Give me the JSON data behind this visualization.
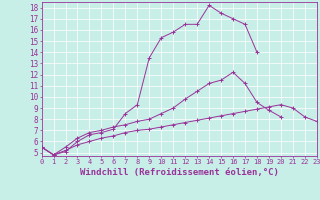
{
  "background_color": "#c8eee8",
  "line_color": "#993399",
  "xlabel": "Windchill (Refroidissement éolien,°C)",
  "xlabel_fontsize": 6.5,
  "ytick_fontsize": 5.5,
  "xtick_fontsize": 5.0,
  "ylim_min": 4.7,
  "ylim_max": 18.5,
  "xlim_min": 0,
  "xlim_max": 23,
  "x": [
    0,
    1,
    2,
    3,
    4,
    5,
    6,
    7,
    8,
    9,
    10,
    11,
    12,
    13,
    14,
    15,
    16,
    17,
    18,
    19,
    20,
    21,
    22,
    23
  ],
  "line1": [
    5.5,
    4.8,
    5.1,
    6.0,
    6.6,
    6.8,
    7.1,
    8.5,
    9.3,
    13.5,
    15.3,
    15.8,
    16.5,
    16.5,
    18.2,
    17.5,
    17.0,
    16.5,
    14.0,
    null,
    null,
    null,
    null,
    null
  ],
  "line2": [
    5.5,
    4.8,
    5.5,
    6.3,
    6.8,
    7.0,
    7.3,
    7.5,
    7.8,
    8.0,
    8.5,
    9.0,
    9.8,
    10.5,
    11.2,
    11.5,
    12.2,
    11.2,
    9.5,
    8.8,
    8.2,
    null,
    null,
    null
  ],
  "line3": [
    5.5,
    4.8,
    5.2,
    5.7,
    6.0,
    6.3,
    6.5,
    6.8,
    7.0,
    7.1,
    7.3,
    7.5,
    7.7,
    7.9,
    8.1,
    8.3,
    8.5,
    8.7,
    8.9,
    9.1,
    9.3,
    9.0,
    8.2,
    7.8
  ],
  "yticks": [
    5,
    6,
    7,
    8,
    9,
    10,
    11,
    12,
    13,
    14,
    15,
    16,
    17,
    18
  ]
}
